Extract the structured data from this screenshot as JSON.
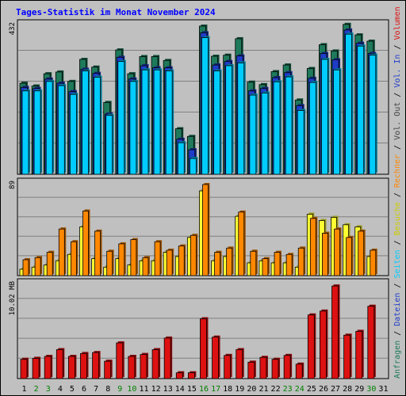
{
  "title": "Tages-Statistik im Monat November 2024",
  "colors": {
    "anfragen": "#1e7a5a",
    "dateien": "#1f3cc8",
    "seiten": "#00ccff",
    "besuche": "#ffff33",
    "rechner": "#ff8800",
    "volumen": "#dd1111",
    "grid": "#808080",
    "weekend_label": "#008000"
  },
  "right_legend": {
    "top": [
      {
        "text": "Anfragen",
        "color": "#1e7a5a"
      },
      {
        "text": " / ",
        "color": "#000000"
      },
      {
        "text": "Dateien",
        "color": "#1f3cc8"
      },
      {
        "text": " / ",
        "color": "#000000"
      },
      {
        "text": "Seiten",
        "color": "#00ccff"
      },
      {
        "text": " / ",
        "color": "#000000"
      },
      {
        "text": "Besuche",
        "color": "#cccc00"
      },
      {
        "text": " / ",
        "color": "#000000"
      },
      {
        "text": "Rechner",
        "color": "#ff8800"
      },
      {
        "text": " / ",
        "color": "#000000"
      },
      {
        "text": "Vol. Out",
        "color": "#444444"
      },
      {
        "text": " / ",
        "color": "#000000"
      },
      {
        "text": "Vol. In",
        "color": "#1f3cc8"
      },
      {
        "text": " / ",
        "color": "#000000"
      },
      {
        "text": "Volumen",
        "color": "#dd1111"
      }
    ]
  },
  "chart_data": [
    {
      "type": "bar",
      "ymax_label": "432",
      "ymax": 432,
      "categories": [
        "1",
        "2",
        "3",
        "4",
        "5",
        "6",
        "7",
        "8",
        "9",
        "10",
        "11",
        "12",
        "13",
        "14",
        "15",
        "16",
        "17",
        "18",
        "19",
        "20",
        "21",
        "22",
        "23",
        "24",
        "25",
        "26",
        "27",
        "28",
        "29",
        "30",
        "31"
      ],
      "weekend_days": [
        "2",
        "3",
        "9",
        "10",
        "16",
        "17",
        "23",
        "24",
        "30"
      ],
      "series": [
        {
          "name": "Anfragen",
          "values": [
            260,
            252,
            287,
            292,
            265,
            328,
            306,
            205,
            355,
            287,
            336,
            336,
            325,
            130,
            108,
            423,
            337,
            340,
            387,
            263,
            256,
            293,
            312,
            212,
            302,
            370,
            352,
            428,
            398,
            380,
            0
          ]
        },
        {
          "name": "Dateien",
          "values": [
            248,
            245,
            272,
            260,
            236,
            300,
            288,
            172,
            334,
            272,
            310,
            304,
            304,
            100,
            70,
            404,
            312,
            322,
            338,
            238,
            245,
            276,
            290,
            196,
            274,
            345,
            327,
            412,
            374,
            345,
            0
          ]
        },
        {
          "name": "Seiten",
          "values": [
            238,
            238,
            265,
            253,
            228,
            295,
            277,
            168,
            322,
            265,
            298,
            298,
            295,
            90,
            45,
            390,
            295,
            310,
            318,
            226,
            232,
            264,
            278,
            182,
            262,
            328,
            298,
            400,
            366,
            340,
            0
          ]
        }
      ]
    },
    {
      "type": "bar",
      "ymax_label": "89",
      "ymax": 89,
      "categories": [
        "1",
        "2",
        "3",
        "4",
        "5",
        "6",
        "7",
        "8",
        "9",
        "10",
        "11",
        "12",
        "13",
        "14",
        "15",
        "16",
        "17",
        "18",
        "19",
        "20",
        "21",
        "22",
        "23",
        "24",
        "25",
        "26",
        "27",
        "28",
        "29",
        "30",
        "31"
      ],
      "series": [
        {
          "name": "Besuche",
          "values": [
            6,
            8,
            10,
            14,
            20,
            46,
            16,
            8,
            16,
            10,
            14,
            14,
            22,
            18,
            36,
            80,
            14,
            18,
            56,
            12,
            14,
            12,
            12,
            8,
            58,
            52,
            55,
            48,
            46,
            18,
            0
          ]
        },
        {
          "name": "Rechner",
          "values": [
            15,
            17,
            22,
            44,
            32,
            61,
            42,
            23,
            30,
            34,
            17,
            32,
            24,
            28,
            38,
            86,
            22,
            26,
            60,
            23,
            16,
            22,
            20,
            26,
            54,
            40,
            44,
            36,
            42,
            24,
            0
          ]
        }
      ]
    },
    {
      "type": "bar",
      "ymax_label": "10.02 MB",
      "ymax": 10.02,
      "categories": [
        "1",
        "2",
        "3",
        "4",
        "5",
        "6",
        "7",
        "8",
        "9",
        "10",
        "11",
        "12",
        "13",
        "14",
        "15",
        "16",
        "17",
        "18",
        "19",
        "20",
        "21",
        "22",
        "23",
        "24",
        "25",
        "26",
        "27",
        "28",
        "29",
        "30",
        "31"
      ],
      "series": [
        {
          "name": "Volumen",
          "values": [
            2.0,
            2.1,
            2.3,
            3.0,
            2.3,
            2.6,
            2.7,
            1.8,
            3.7,
            2.3,
            2.5,
            3.0,
            4.2,
            0.6,
            0.6,
            6.2,
            4.3,
            2.4,
            3.0,
            1.7,
            2.2,
            2.0,
            2.4,
            1.5,
            6.6,
            7.0,
            9.6,
            4.5,
            4.9,
            7.5,
            0
          ]
        }
      ]
    }
  ]
}
